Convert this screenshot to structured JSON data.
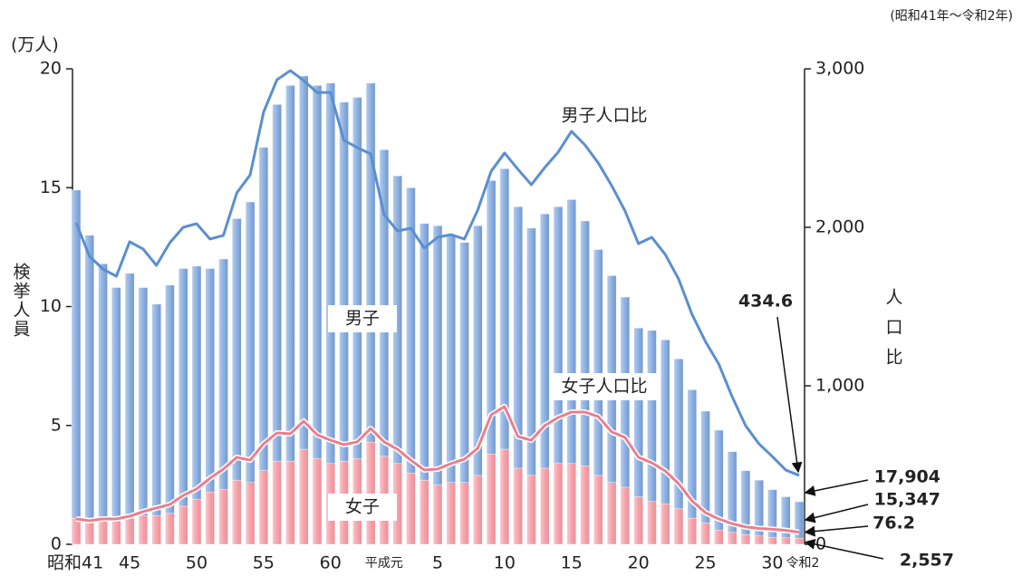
{
  "chart_data": {
    "type": "bar_line",
    "subtitle": "(昭和41年〜令和2年)",
    "y_unit": "(万人)",
    "ylabel": "検挙人員",
    "y2label": "人口比",
    "categories": [
      "昭和41",
      null,
      null,
      null,
      "45",
      null,
      null,
      null,
      null,
      "50",
      null,
      null,
      null,
      null,
      "55",
      null,
      null,
      null,
      null,
      "60",
      null,
      null,
      null,
      "平成元",
      null,
      null,
      null,
      "5",
      null,
      null,
      null,
      null,
      "10",
      null,
      null,
      null,
      null,
      "15",
      null,
      null,
      null,
      null,
      "20",
      null,
      null,
      null,
      null,
      "25",
      null,
      null,
      null,
      null,
      "30",
      null,
      "令和2"
    ],
    "ylim": [
      0,
      20
    ],
    "yticks": [
      0,
      5,
      10,
      15,
      20
    ],
    "y2lim": [
      0,
      3000
    ],
    "y2ticks": [
      0,
      {
        "value": 1000,
        "label": "1,000"
      },
      {
        "value": 2000,
        "label": "2,000"
      },
      {
        "value": 3000,
        "label": "3,000"
      }
    ],
    "series": [
      {
        "name": "女子",
        "kind": "bar",
        "color": "#f4a3ab",
        "values": [
          1.1,
          1.0,
          1.1,
          1.0,
          1.1,
          1.2,
          1.2,
          1.3,
          1.6,
          1.9,
          2.2,
          2.3,
          2.7,
          2.6,
          3.1,
          3.5,
          3.5,
          4.0,
          3.6,
          3.4,
          3.5,
          3.6,
          4.3,
          3.7,
          3.4,
          3.0,
          2.7,
          2.5,
          2.6,
          2.6,
          2.9,
          3.8,
          4.0,
          3.2,
          2.9,
          3.2,
          3.4,
          3.4,
          3.3,
          2.9,
          2.6,
          2.4,
          2.0,
          1.8,
          1.7,
          1.5,
          1.1,
          0.9,
          0.6,
          0.5,
          0.4,
          0.35,
          0.3,
          0.28,
          0.2557
        ],
        "value_labels": [
          null,
          null,
          null,
          null,
          null,
          null,
          null,
          null,
          null,
          null,
          null,
          null,
          null,
          null,
          null,
          null,
          null,
          null,
          null,
          null,
          null,
          null,
          null,
          null,
          null,
          null,
          null,
          null,
          null,
          null,
          null,
          null,
          null,
          null,
          null,
          null,
          null,
          null,
          null,
          null,
          null,
          null,
          null,
          null,
          null,
          null,
          null,
          null,
          null,
          null,
          null,
          null,
          null,
          null,
          "2,557"
        ]
      },
      {
        "name": "男子",
        "kind": "bar",
        "color": "#86a9dc",
        "values": [
          13.8,
          12.0,
          10.7,
          9.8,
          10.3,
          9.6,
          8.9,
          9.6,
          10.0,
          9.8,
          9.4,
          9.7,
          11.0,
          11.8,
          13.6,
          15.0,
          15.8,
          15.7,
          15.7,
          16.0,
          15.1,
          15.2,
          15.1,
          12.9,
          12.1,
          12.0,
          10.8,
          10.9,
          10.4,
          10.1,
          10.5,
          11.5,
          11.8,
          11.0,
          10.4,
          10.7,
          10.8,
          11.1,
          10.3,
          9.5,
          8.7,
          8.0,
          7.1,
          7.2,
          6.9,
          6.3,
          5.4,
          4.7,
          4.2,
          3.4,
          2.7,
          2.35,
          2.0,
          1.72,
          1.5347
        ],
        "value_labels": [
          null,
          null,
          null,
          null,
          null,
          null,
          null,
          null,
          null,
          null,
          null,
          null,
          null,
          null,
          null,
          null,
          null,
          null,
          null,
          null,
          null,
          null,
          null,
          null,
          null,
          null,
          null,
          null,
          null,
          null,
          null,
          null,
          null,
          null,
          null,
          null,
          null,
          null,
          null,
          null,
          null,
          null,
          null,
          null,
          null,
          null,
          null,
          null,
          null,
          null,
          null,
          null,
          null,
          null,
          "15,347"
        ]
      },
      {
        "name": "男子人口比",
        "kind": "line",
        "axis": "y2",
        "color": "#5b8fcf",
        "values": [
          2029,
          1817,
          1737,
          1691,
          1909,
          1863,
          1760,
          1903,
          2000,
          2023,
          1926,
          1949,
          2217,
          2331,
          2726,
          2931,
          2989,
          2926,
          2851,
          2851,
          2549,
          2503,
          2463,
          2080,
          1977,
          1994,
          1869,
          1937,
          1954,
          1926,
          2109,
          2354,
          2469,
          2366,
          2269,
          2377,
          2474,
          2606,
          2520,
          2406,
          2263,
          2103,
          1897,
          1937,
          1829,
          1674,
          1451,
          1280,
          1137,
          931,
          749,
          634,
          554,
          469,
          434.6
        ]
      },
      {
        "name": "女子人口比",
        "kind": "line",
        "axis": "y2",
        "color": "#e8808e",
        "values": [
          160,
          149,
          160,
          160,
          177,
          206,
          229,
          251,
          309,
          349,
          417,
          474,
          549,
          531,
          634,
          703,
          697,
          777,
          691,
          657,
          629,
          646,
          731,
          646,
          600,
          531,
          469,
          474,
          509,
          537,
          606,
          817,
          869,
          680,
          657,
          749,
          800,
          834,
          834,
          806,
          709,
          674,
          549,
          514,
          463,
          383,
          274,
          200,
          160,
          130,
          110,
          100,
          95,
          88,
          76.2
        ]
      }
    ],
    "total_label": {
      "value": 1.7904,
      "label": "17,904"
    }
  }
}
